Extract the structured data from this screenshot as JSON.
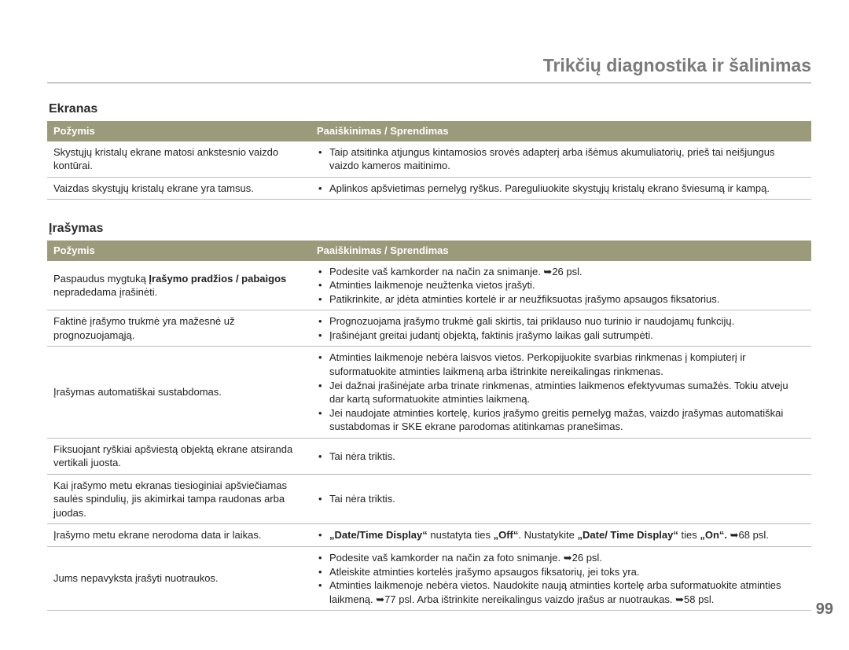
{
  "chapter_title": "Trikčių diagnostika ir šalinimas",
  "page_number": "99",
  "columns": {
    "symptom": "Požymis",
    "explanation": "Paaiškinimas / Sprendimas"
  },
  "sections": [
    {
      "heading": "Ekranas",
      "rows": [
        {
          "symptom_html": "Skystųjų kristalų ekrane matosi ankstesnio vaizdo kontūrai.",
          "bullets_html": [
            "Taip atsitinka atjungus kintamosios srovės adapterį arba išėmus akumuliatorių, prieš tai neišjungus vaizdo kameros maitinimo."
          ]
        },
        {
          "symptom_html": "Vaizdas skystųjų kristalų ekrane yra tamsus.",
          "bullets_html": [
            "Aplinkos apšvietimas pernelyg ryškus. Pareguliuokite skystųjų kristalų ekrano šviesumą ir kampą."
          ]
        }
      ]
    },
    {
      "heading": "Įrašymas",
      "rows": [
        {
          "symptom_html": "Paspaudus mygtuką <b>Įrašymo pradžios / pabaigos</b> nepradedama įrašinėti.",
          "bullets_html": [
            "Podesite vaš kamkorder na način za snimanje. <span class=\"arrow\">➥</span>26 psl.",
            "Atminties laikmenoje neužtenka vietos įrašyti.",
            "Patikrinkite, ar įdėta atminties kortelė ir ar neužfiksuotas įrašymo apsaugos fiksatorius."
          ]
        },
        {
          "symptom_html": "Faktinė įrašymo trukmė yra mažesnė už prognozuojamąją.",
          "bullets_html": [
            "Prognozuojama įrašymo trukmė gali skirtis, tai priklauso nuo turinio ir naudojamų funkcijų.",
            "Įrašinėjant greitai judantį objektą, faktinis įrašymo laikas gali sutrumpėti."
          ]
        },
        {
          "symptom_html": "Įrašymas automatiškai sustabdomas.",
          "bullets_html": [
            "Atminties laikmenoje nebėra laisvos vietos. Perkopijuokite svarbias rinkmenas į kompiuterį ir suformatuokite atminties laikmeną arba ištrinkite nereikalingas rinkmenas.",
            "Jei dažnai įrašinėjate arba trinate rinkmenas, atminties laikmenos efektyvumas sumažės. Tokiu atveju dar kartą suformatuokite atminties laikmeną.",
            "Jei naudojate atminties kortelę, kurios įrašymo greitis pernelyg mažas, vaizdo įrašymas automatiškai sustabdomas ir SKE ekrane parodomas atitinkamas pranešimas."
          ]
        },
        {
          "symptom_html": "Fiksuojant ryškiai apšviestą objektą ekrane atsiranda vertikali juosta.",
          "bullets_html": [
            "Tai nėra triktis."
          ]
        },
        {
          "symptom_html": "Kai įrašymo metu ekranas tiesioginiai apšviečiamas saulės spindulių, jis akimirkai tampa raudonas arba juodas.",
          "bullets_html": [
            "Tai nėra triktis."
          ]
        },
        {
          "symptom_html": "Įrašymo metu ekrane nerodoma data ir laikas.",
          "bullets_html": [
            "<b>„Date/Time Display“</b> nustatyta ties <b>„Off“</b>. Nustatykite <b>„Date/ Time Display“</b> ties <b>„On“. <span class=\"arrow\">➥</span></b>68 psl."
          ]
        },
        {
          "symptom_html": "Jums nepavyksta įrašyti nuotraukos.",
          "bullets_html": [
            "Podesite vaš kamkorder na način za foto snimanje. <span class=\"arrow\">➥</span>26 psl.",
            "Atleiskite atminties kortelės įrašymo apsaugos fiksatorių, jei toks yra.",
            "Atminties laikmenoje nebėra vietos. Naudokite naują atminties kortelę arba suformatuokite atminties laikmeną. <span class=\"arrow\">➥</span>77 psl. Arba ištrinkite nereikalingus vaizdo įrašus ar nuotraukas. <span class=\"arrow\">➥</span>58 psl."
          ]
        }
      ]
    }
  ]
}
